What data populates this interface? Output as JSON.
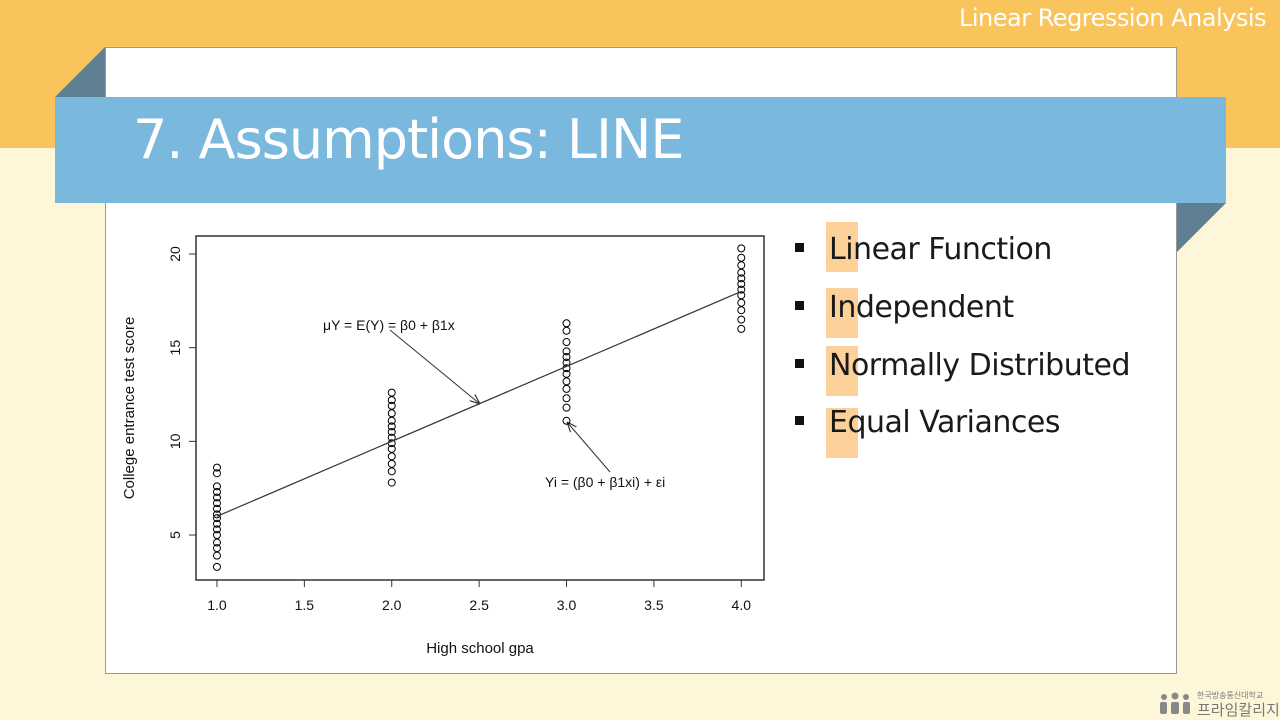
{
  "header": {
    "label": "Linear Regression Analysis"
  },
  "slide": {
    "title": "7. Assumptions: LINE",
    "bullets": [
      "Linear Function",
      "Independent",
      "Normally Distributed",
      "Equal Variances"
    ]
  },
  "footer": {
    "org": "한국방송통신대학교",
    "brand": "프라임칼리지"
  },
  "chart_data": {
    "type": "scatter",
    "x_label": "High school gpa",
    "y_label": "College entrance test score",
    "annotations": [
      "μY = E(Y) = β0 + β1x",
      "Yi = (β0 + β1xi) + εi"
    ],
    "xlim": [
      0.88,
      4.13
    ],
    "ylim": [
      2.6,
      20.96
    ],
    "xticks": [
      {
        "value": 1,
        "label": "1.0"
      },
      1.5,
      {
        "value": 2,
        "label": "2.0"
      },
      2.5,
      {
        "value": 3,
        "label": "3.0"
      },
      3.5,
      {
        "value": 4,
        "label": "4.0"
      }
    ],
    "yticks": [
      5,
      10,
      15,
      20
    ],
    "series": [
      {
        "type": "scatter",
        "color": "#000000",
        "x": [
          1,
          1,
          1,
          1,
          1,
          1,
          1,
          1,
          1,
          1,
          1,
          1,
          1,
          1,
          1,
          1,
          2,
          2,
          2,
          2,
          2,
          2,
          2,
          2,
          2,
          2,
          2,
          2,
          2,
          2,
          3,
          3,
          3,
          3,
          3,
          3,
          3,
          3,
          3,
          3,
          3,
          3,
          3,
          4,
          4,
          4,
          4,
          4,
          4,
          4,
          4,
          4,
          4,
          4,
          4
        ],
        "values": [
          3.3,
          3.9,
          4.3,
          4.6,
          5.0,
          5.3,
          5.6,
          5.9,
          6.1,
          6.4,
          6.7,
          7.0,
          7.3,
          7.6,
          8.3,
          8.6,
          7.8,
          8.4,
          8.8,
          9.2,
          9.6,
          9.9,
          10.2,
          10.5,
          10.8,
          11.1,
          11.5,
          11.9,
          12.2,
          12.6,
          11.1,
          11.8,
          12.3,
          12.8,
          13.2,
          13.6,
          13.9,
          14.2,
          14.5,
          14.8,
          15.3,
          15.9,
          16.3,
          16.0,
          16.5,
          17.0,
          17.4,
          17.8,
          18.1,
          18.4,
          18.7,
          19.0,
          19.4,
          19.8,
          20.3
        ]
      },
      {
        "type": "line",
        "color": "#333333",
        "x": [
          1,
          4
        ],
        "values": [
          6,
          18
        ]
      }
    ]
  }
}
